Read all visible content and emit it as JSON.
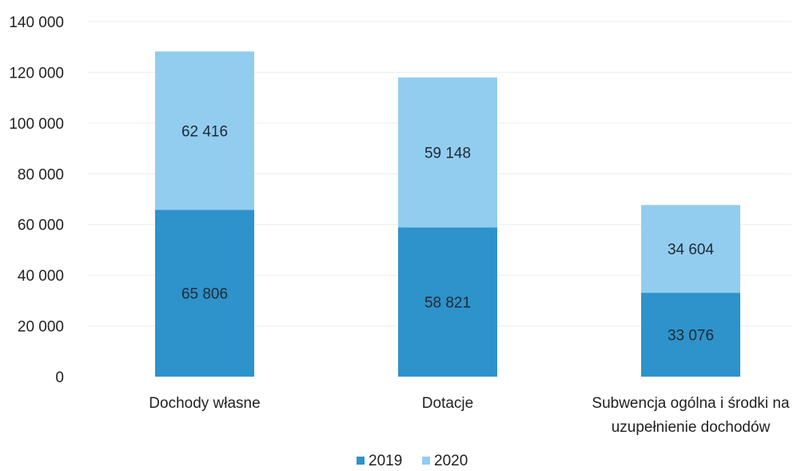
{
  "chart_data": {
    "type": "bar",
    "stacked": true,
    "categories": [
      [
        "Dochody własne"
      ],
      [
        "Dotacje"
      ],
      [
        "Subwencja ogólna i środki na",
        "uzupełnienie dochodów"
      ]
    ],
    "series": [
      {
        "name": "2019",
        "color": "#2e92cb",
        "values": [
          65806,
          58821,
          33076
        ],
        "labels": [
          "65 806",
          "58 821",
          "33 076"
        ]
      },
      {
        "name": "2020",
        "color": "#92cdef",
        "values": [
          62416,
          59148,
          34604
        ],
        "labels": [
          "62 416",
          "59 148",
          "34 604"
        ]
      }
    ],
    "ylim": [
      0,
      140000
    ],
    "yticks": [
      {
        "value": 0,
        "label": "0"
      },
      {
        "value": 20000,
        "label": "20 000"
      },
      {
        "value": 40000,
        "label": "40 000"
      },
      {
        "value": 60000,
        "label": "60 000"
      },
      {
        "value": 80000,
        "label": "80 000"
      },
      {
        "value": 100000,
        "label": "100 000"
      },
      {
        "value": 120000,
        "label": "120 000"
      },
      {
        "value": 140000,
        "label": "140 000"
      }
    ],
    "grid": true,
    "legend": "bottom"
  }
}
